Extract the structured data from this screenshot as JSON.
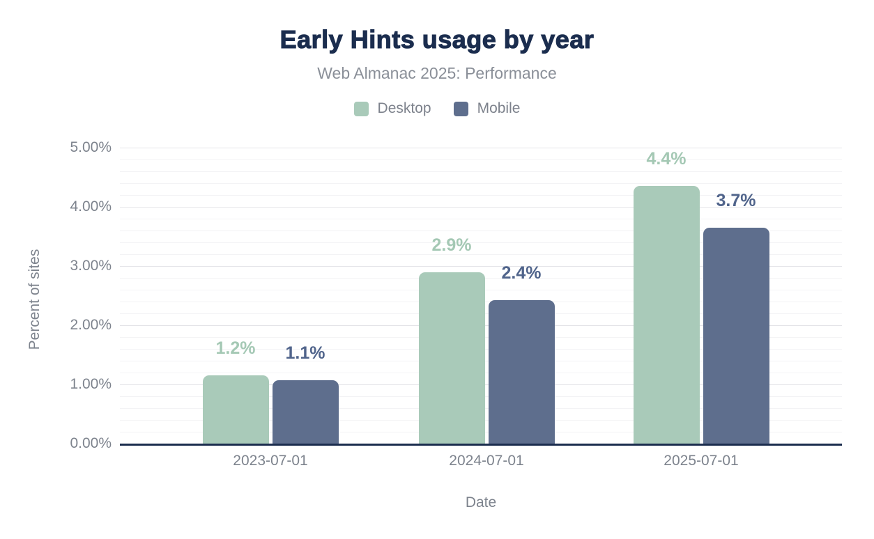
{
  "header": {
    "title": "Early Hints usage by year",
    "subtitle": "Web Almanac 2025: Performance"
  },
  "colors": {
    "desktop": "#a9cab9",
    "mobile": "#5e6e8d",
    "desktop_label": "#a4c8b4",
    "mobile_label": "#50648b",
    "title_text": "#1b2d4e",
    "subtitle_text": "#8a8f98",
    "legend_text": "#7d828c",
    "axis_text": "#7d838d",
    "axis_line": "#1b2d4e",
    "grid_major": "#e4e4e8",
    "grid_minor": "#f3f3f5"
  },
  "chart_data": {
    "type": "bar",
    "title": "Early Hints usage by year",
    "subtitle": "Web Almanac 2025: Performance",
    "categories": [
      "2023-07-01",
      "2024-07-01",
      "2025-07-01"
    ],
    "series": [
      {
        "name": "Desktop",
        "values": [
          1.15,
          2.9,
          4.35
        ],
        "labels": [
          "1.2%",
          "2.9%",
          "4.4%"
        ]
      },
      {
        "name": "Mobile",
        "values": [
          1.07,
          2.42,
          3.65
        ],
        "labels": [
          "1.1%",
          "2.4%",
          "3.7%"
        ]
      }
    ],
    "xlabel": "Date",
    "ylabel": "Percent of sites",
    "ylim": [
      0,
      5
    ],
    "yticks": [
      "0.00%",
      "1.00%",
      "2.00%",
      "3.00%",
      "4.00%",
      "5.00%"
    ],
    "ytick_values": [
      0,
      1,
      2,
      3,
      4,
      5
    ],
    "minor_tick_step": 0.2,
    "legend_position": "top",
    "grid": "horizontal-major-and-minor"
  }
}
